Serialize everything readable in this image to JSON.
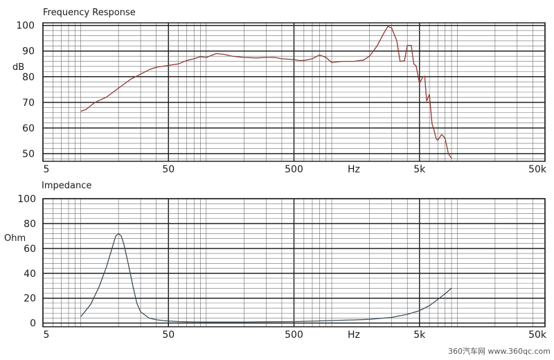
{
  "chart_data": [
    {
      "type": "line",
      "title": "Frequency Response",
      "ylabel": "dB",
      "xlabel": "Hz",
      "xscale": "log",
      "xlim": [
        5,
        50000
      ],
      "ylim": [
        47,
        101
      ],
      "grid": true,
      "xticks": [
        {
          "value": 5,
          "label": "5"
        },
        {
          "value": 50,
          "label": "50"
        },
        {
          "value": 500,
          "label": "500"
        },
        {
          "value": 1500,
          "label": "Hz"
        },
        {
          "value": 5000,
          "label": "5k"
        },
        {
          "value": 50000,
          "label": "50k"
        }
      ],
      "yticks": [
        {
          "value": 50,
          "label": "50"
        },
        {
          "value": 60,
          "label": "60"
        },
        {
          "value": 70,
          "label": "70"
        },
        {
          "value": 80,
          "label": "80"
        },
        {
          "value": 90,
          "label": "90"
        },
        {
          "value": 100,
          "label": "100"
        }
      ],
      "series": [
        {
          "color": "#8a3a30",
          "x": [
            10,
            11,
            13,
            16,
            20,
            25,
            30,
            35,
            40,
            50,
            60,
            70,
            80,
            90,
            100,
            120,
            140,
            160,
            200,
            250,
            300,
            350,
            400,
            500,
            550,
            600,
            700,
            800,
            900,
            1000,
            1200,
            1500,
            1800,
            2000,
            2300,
            2600,
            2800,
            3000,
            3300,
            3500,
            3800,
            4000,
            4300,
            4500,
            4700,
            5000,
            5300,
            5500,
            5700,
            6000,
            6300,
            6500,
            6800,
            7000,
            7500,
            8000,
            8500,
            9000
          ],
          "y": [
            66.5,
            67.2,
            70,
            72,
            75.5,
            79,
            81,
            82.7,
            83.7,
            84.4,
            85,
            86.3,
            87,
            87.8,
            87.5,
            89,
            88.7,
            88,
            87.5,
            87.3,
            87.5,
            87.5,
            87,
            86.7,
            86.3,
            86.3,
            87,
            88.5,
            87.5,
            85.5,
            86,
            86,
            86.5,
            88,
            92,
            97,
            99.6,
            99,
            94,
            86,
            86.2,
            92.2,
            92.2,
            85,
            84.2,
            77.3,
            79.8,
            80.2,
            70.5,
            73.1,
            61.6,
            59.5,
            55.7,
            55.2,
            57.5,
            56,
            50,
            48.2
          ]
        }
      ]
    },
    {
      "type": "line",
      "title": "Impedance",
      "ylabel": "Ohm",
      "xlabel": "Hz",
      "xscale": "log",
      "xlim": [
        5,
        50000
      ],
      "ylim": [
        -3,
        100
      ],
      "grid": true,
      "xticks": [
        {
          "value": 5,
          "label": "5"
        },
        {
          "value": 50,
          "label": "50"
        },
        {
          "value": 500,
          "label": "500"
        },
        {
          "value": 1500,
          "label": "Hz"
        },
        {
          "value": 5000,
          "label": "5k"
        },
        {
          "value": 50000,
          "label": "50k"
        }
      ],
      "yticks": [
        {
          "value": 0,
          "label": "0"
        },
        {
          "value": 20,
          "label": "20"
        },
        {
          "value": 40,
          "label": "40"
        },
        {
          "value": 60,
          "label": "60"
        },
        {
          "value": 80,
          "label": "80"
        },
        {
          "value": 100,
          "label": "100"
        }
      ],
      "series": [
        {
          "color": "#3d4f5a",
          "x": [
            10,
            12,
            14,
            16,
            18,
            19,
            20,
            21,
            22,
            24,
            26,
            28,
            30,
            35,
            40,
            45,
            50,
            60,
            70,
            80,
            100,
            150,
            200,
            300,
            500,
            700,
            1000,
            1500,
            2000,
            3000,
            4000,
            5000,
            6000,
            7000,
            8000,
            9000
          ],
          "y": [
            5,
            15,
            29,
            45,
            62,
            70,
            72,
            70,
            64,
            47,
            30,
            16,
            9,
            4,
            2.6,
            2,
            1.6,
            1.2,
            1,
            0.9,
            0.8,
            0.8,
            0.8,
            1,
            1.2,
            1.5,
            2,
            2.5,
            3,
            4.5,
            7,
            10,
            14,
            19,
            23.5,
            28
          ]
        }
      ]
    }
  ],
  "watermark": {
    "text": "360汽车网 www.360qc.com"
  }
}
